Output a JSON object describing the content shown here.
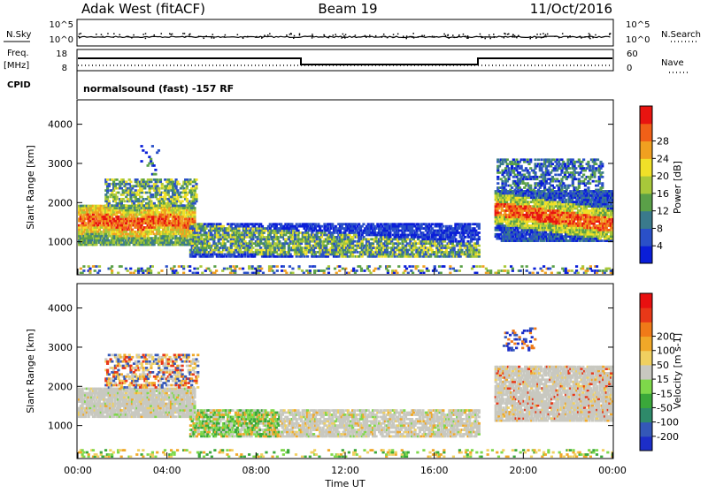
{
  "header": {
    "station": "Adak West (fitACF)",
    "beam": "Beam 19",
    "date": "11/Oct/2016"
  },
  "strip_labels": {
    "nsky": "N.Sky",
    "nsearch": "N.Search",
    "freq_line1": "Freq.",
    "freq_line2": "[MHz]",
    "nave": "Nave",
    "cpid": "CPID",
    "cpid_value": "normalsound (fast) -157 RF"
  },
  "strip_ticks": {
    "noise_left": [
      "10^5",
      "10^0"
    ],
    "noise_right": [
      "10^5",
      "10^0"
    ],
    "freq_left": [
      "18",
      "8"
    ],
    "nave_right": [
      "60",
      "0"
    ]
  },
  "chart_data": [
    {
      "type": "heatmap",
      "panel": "power",
      "title": "",
      "xlabel": "Time UT",
      "ylabel": "Slant Range [km]",
      "x_ticks": [
        "00:00",
        "04:00",
        "08:00",
        "12:00",
        "16:00",
        "20:00",
        "00:00"
      ],
      "x_range_hours": [
        0,
        24
      ],
      "y_ticks": [
        1000,
        2000,
        3000,
        4000
      ],
      "ylim": [
        180,
        4600
      ],
      "colorbar_label": "Power [dB]",
      "colorbar_ticks": [
        4,
        8,
        12,
        16,
        20,
        24,
        28
      ],
      "colorbar_colors": [
        "#0a1ed8",
        "#2a50c8",
        "#3a7a8c",
        "#5aa048",
        "#a8c83a",
        "#f0e028",
        "#f0a020",
        "#f06018",
        "#e81410"
      ],
      "echo_regions": [
        {
          "t_start": 0.0,
          "t_end": 5.2,
          "range_km": [
            900,
            2900
          ],
          "level_db": "high"
        },
        {
          "t_start": 5.0,
          "t_end": 18.0,
          "range_km": [
            600,
            1500
          ],
          "level_db": "mid"
        },
        {
          "t_start": 18.7,
          "t_end": 24.0,
          "range_km": [
            1000,
            3100
          ],
          "level_db": "high"
        }
      ]
    },
    {
      "type": "heatmap",
      "panel": "velocity",
      "title": "",
      "xlabel": "Time UT",
      "ylabel": "Slant Range [km]",
      "x_ticks": [
        "00:00",
        "04:00",
        "08:00",
        "12:00",
        "16:00",
        "20:00",
        "00:00"
      ],
      "x_range_hours": [
        0,
        24
      ],
      "y_ticks": [
        1000,
        2000,
        3000,
        4000
      ],
      "ylim": [
        180,
        4600
      ],
      "colorbar_label": "Velocity [m s-1]",
      "colorbar_ticks": [
        "200",
        "100",
        "50",
        "15",
        "-15",
        "-50",
        "-100",
        "-200"
      ],
      "colorbar_colors": [
        "#1c2ec8",
        "#3458b8",
        "#2e8a6a",
        "#3aa83a",
        "#7ed84a",
        "#c8c8c0",
        "#f0d060",
        "#f0a828",
        "#f07a18",
        "#e83818",
        "#e81010"
      ]
    }
  ]
}
